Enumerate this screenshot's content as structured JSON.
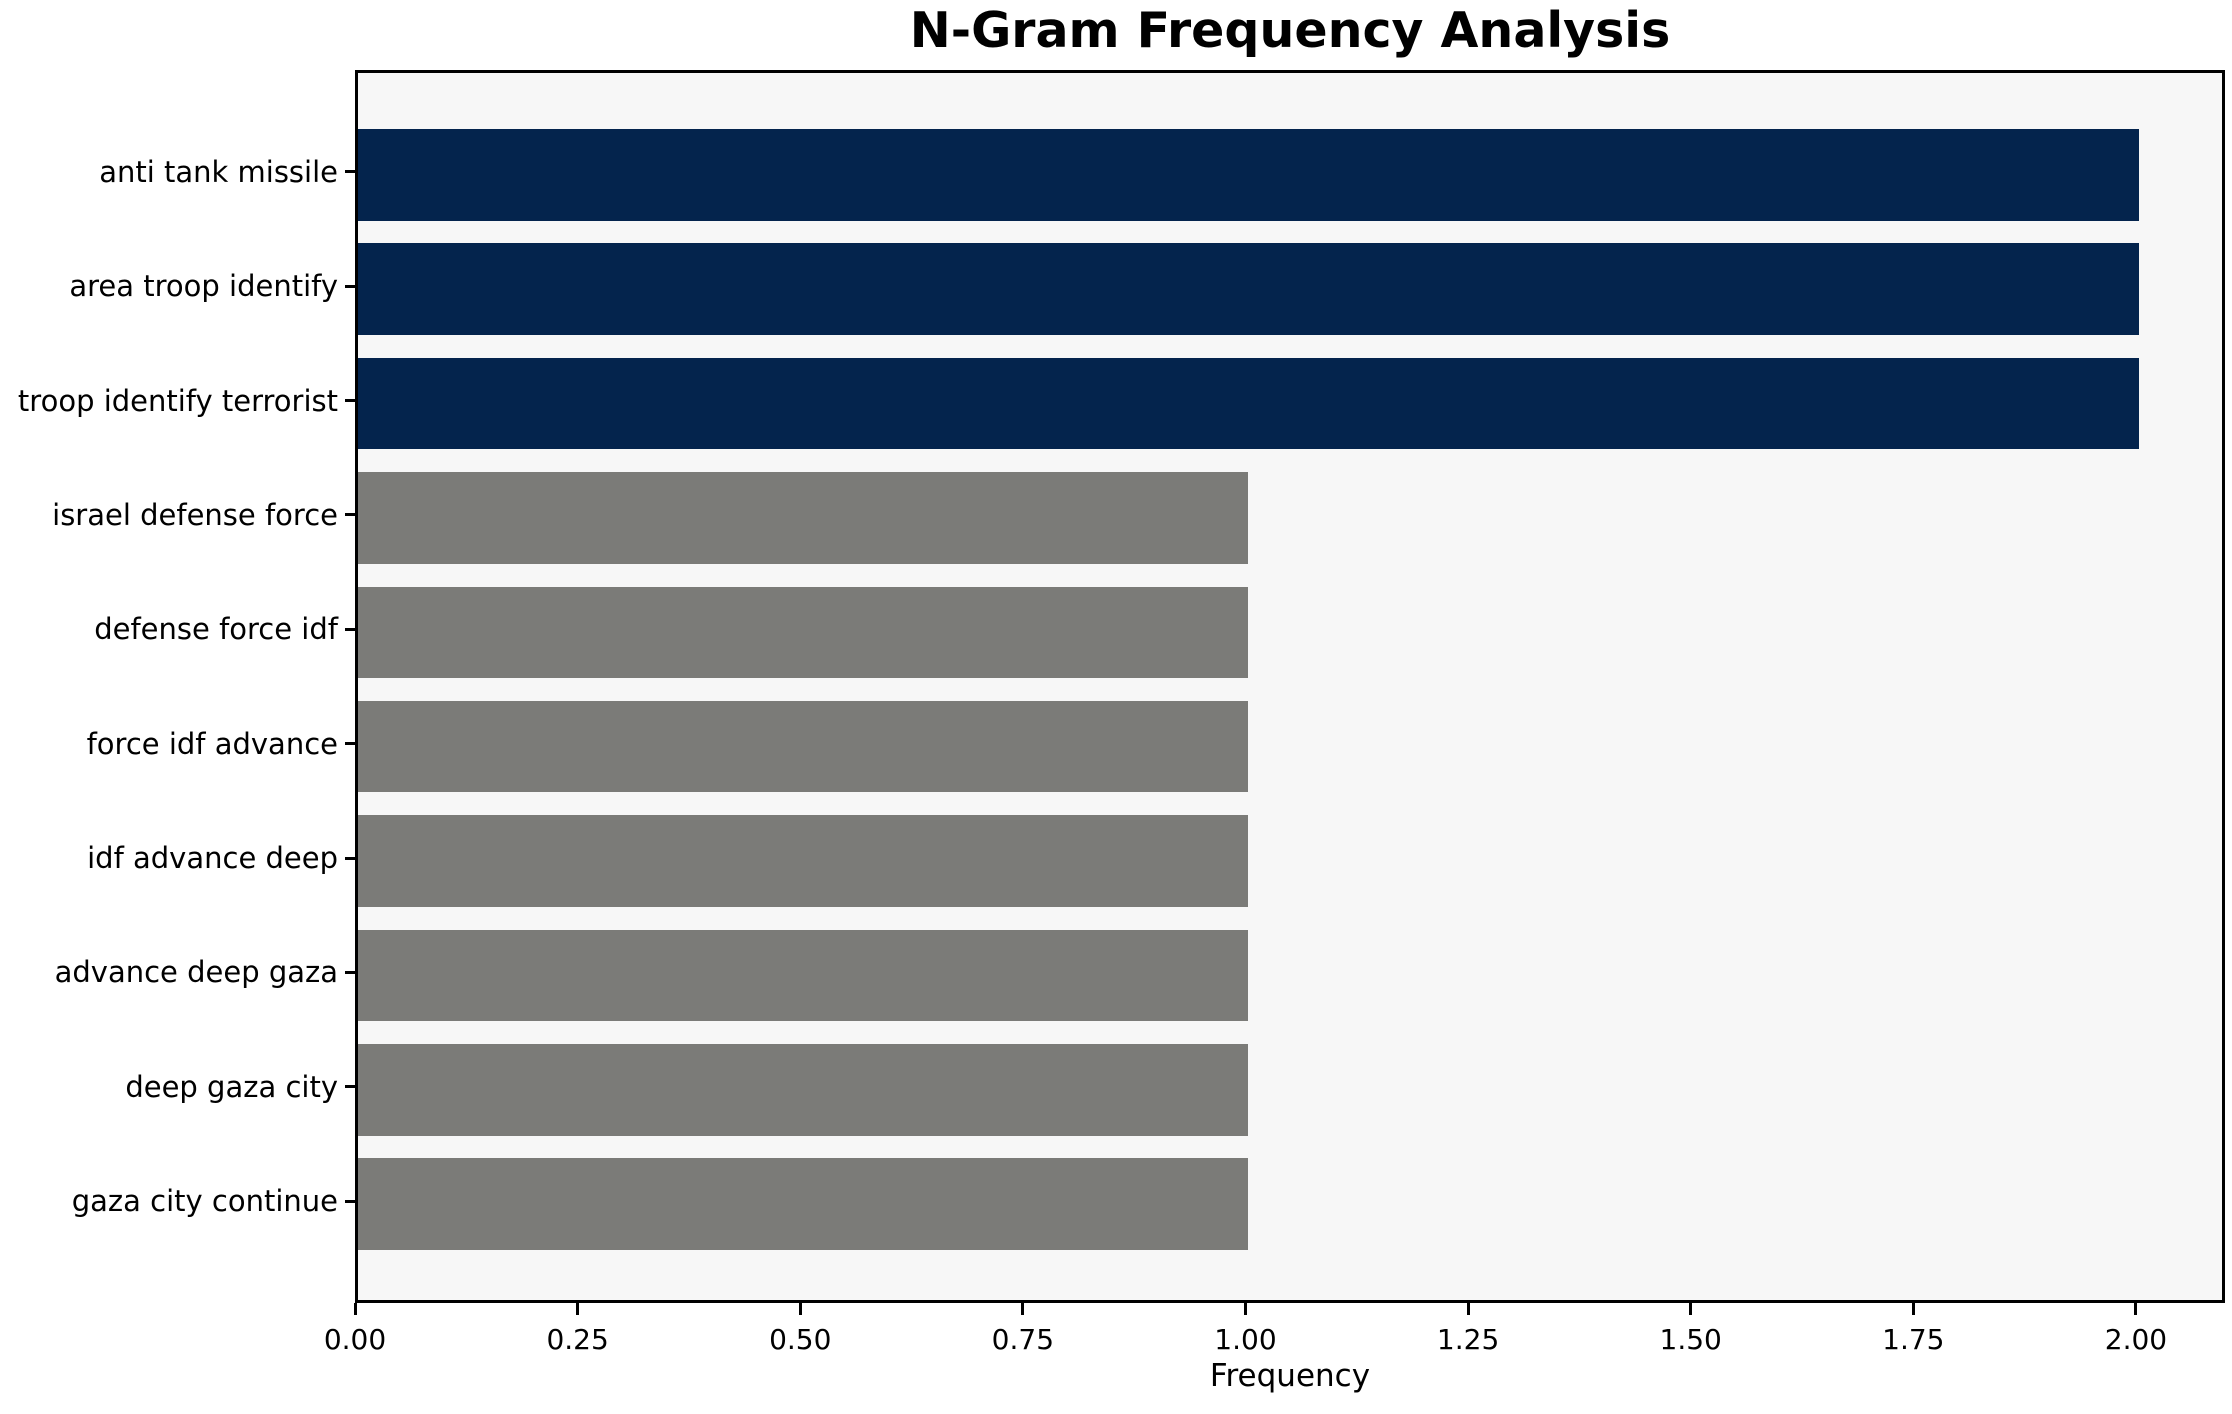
{
  "chart_data": {
    "type": "bar",
    "orientation": "horizontal",
    "title": "N-Gram Frequency Analysis",
    "xlabel": "Frequency",
    "ylabel": "",
    "categories": [
      "anti tank missile",
      "area troop identify",
      "troop identify terrorist",
      "israel defense force",
      "defense force idf",
      "force idf advance",
      "idf advance deep",
      "advance deep gaza",
      "deep gaza city",
      "gaza city continue"
    ],
    "values": [
      2,
      2,
      2,
      1,
      1,
      1,
      1,
      1,
      1,
      1
    ],
    "colors": [
      "#04244d",
      "#04244d",
      "#04244d",
      "#7b7b78",
      "#7b7b78",
      "#7b7b78",
      "#7b7b78",
      "#7b7b78",
      "#7b7b78",
      "#7b7b78"
    ],
    "highlight_color": "#04244d",
    "muted_color": "#7b7b78",
    "xlim": [
      0,
      2.1
    ],
    "xticks": [
      {
        "value": 0.0,
        "label": "0.00"
      },
      {
        "value": 0.25,
        "label": "0.25"
      },
      {
        "value": 0.5,
        "label": "0.50"
      },
      {
        "value": 0.75,
        "label": "0.75"
      },
      {
        "value": 1.0,
        "label": "1.00"
      },
      {
        "value": 1.25,
        "label": "1.25"
      },
      {
        "value": 1.5,
        "label": "1.50"
      },
      {
        "value": 1.75,
        "label": "1.75"
      },
      {
        "value": 2.0,
        "label": "2.00"
      }
    ],
    "grid": false,
    "legend": null,
    "plot_background": "#f7f7f7",
    "figure_background": "#ffffff",
    "spine_color": "#000000",
    "text_color": "#000000",
    "bar_height_fraction": 0.8,
    "y_axis_margin": 0.49
  }
}
